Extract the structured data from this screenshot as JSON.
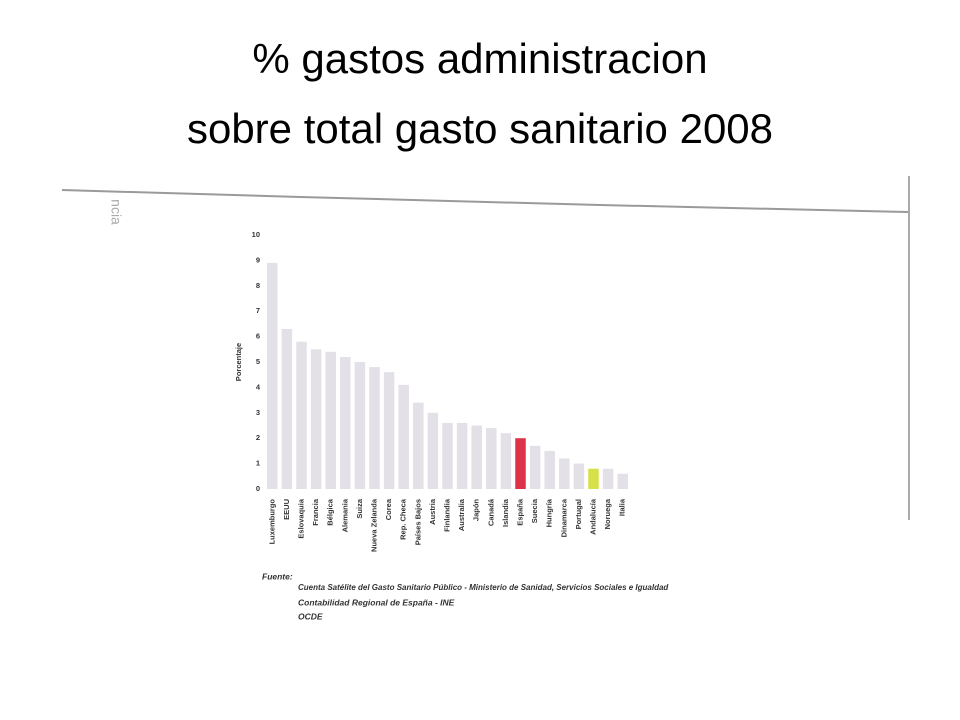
{
  "chart_data": {
    "type": "bar",
    "title": [
      "% gastos administracion",
      "sobre total gasto sanitario 2008"
    ],
    "margin_text": "ncia",
    "y_label": "Porcentaje",
    "categories": [
      "Luxemburgo",
      "EEUU",
      "Eslovaquia",
      "Francia",
      "Bélgica",
      "Alemania",
      "Suiza",
      "Nueva Zelanda",
      "Corea",
      "Rep. Checa",
      "Países Bajos",
      "Austria",
      "Finlandia",
      "Australia",
      "Japón",
      "Canadá",
      "Islandia",
      "España",
      "Suecia",
      "Hungría",
      "Dinamarca",
      "Portugal",
      "Andalucía",
      "Noruega",
      "Italia"
    ],
    "values": [
      8.9,
      6.3,
      5.8,
      5.5,
      5.4,
      5.2,
      5.0,
      4.8,
      4.6,
      4.1,
      3.4,
      3.0,
      2.6,
      2.6,
      2.5,
      2.4,
      2.2,
      2.0,
      1.7,
      1.5,
      1.2,
      1.0,
      0.8,
      0.8,
      0.6
    ],
    "colors": [
      "#e4e0e8",
      "#e4e0e8",
      "#e4e0e8",
      "#e4e0e8",
      "#e4e0e8",
      "#e4e0e8",
      "#e4e0e8",
      "#e4e0e8",
      "#e4e0e8",
      "#e4e0e8",
      "#e4e0e8",
      "#e4e0e8",
      "#e4e0e8",
      "#e4e0e8",
      "#e4e0e8",
      "#e4e0e8",
      "#e4e0e8",
      "#dd3349",
      "#e4e0e8",
      "#e4e0e8",
      "#e4e0e8",
      "#e4e0e8",
      "#d6e04a",
      "#e4e0e8",
      "#e4e0e8"
    ],
    "ylim": [
      0,
      10
    ],
    "yticks": [
      0,
      1,
      2,
      3,
      4,
      5,
      6,
      7,
      8,
      9,
      10
    ],
    "grid": false,
    "source_label": "Fuente:",
    "source": [
      "Cuenta Satélite del Gasto Sanitario Público - Ministerio de Sanidad, Servicios Sociales e Igualdad",
      "Contabilidad Regional de España - INE",
      "OCDE"
    ]
  }
}
